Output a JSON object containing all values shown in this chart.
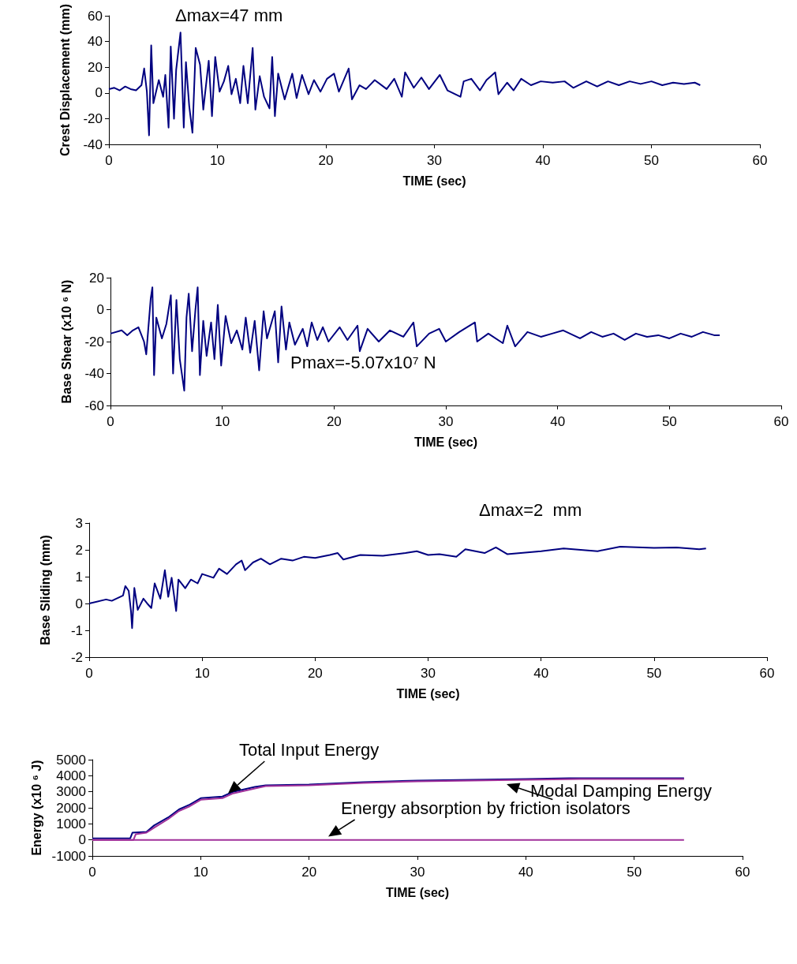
{
  "chart_data": [
    {
      "type": "line",
      "ylabel": "Crest Displacement (mm)",
      "xlabel": "TIME (sec)",
      "annotations": [
        "Δmax=47 mm"
      ],
      "marker": "none",
      "xlim": [
        0,
        60
      ],
      "xticks": [
        0,
        10,
        20,
        30,
        40,
        50,
        60
      ],
      "ylim": [
        -40,
        60
      ],
      "yticks": [
        -40,
        -20,
        0,
        20,
        40,
        60
      ],
      "series": [
        {
          "color": "#000080",
          "x": [
            0,
            0.5,
            1,
            1.5,
            2,
            2.5,
            3,
            3.25,
            3.5,
            3.7,
            3.9,
            4.1,
            4.6,
            5.0,
            5.2,
            5.5,
            5.7,
            6.0,
            6.2,
            6.6,
            6.9,
            7.1,
            7.4,
            7.7,
            8.0,
            8.4,
            8.7,
            9.2,
            9.5,
            9.8,
            10.2,
            10.6,
            11.0,
            11.3,
            11.7,
            12.1,
            12.4,
            12.8,
            13.25,
            13.5,
            13.9,
            14.3,
            14.8,
            15.05,
            15.3,
            15.6,
            16.2,
            16.9,
            17.3,
            17.8,
            18.4,
            18.9,
            19.5,
            20.1,
            20.75,
            21.2,
            22.1,
            22.4,
            23.1,
            23.7,
            24.5,
            25.6,
            26.3,
            27,
            27.3,
            28.1,
            28.8,
            29.5,
            30.5,
            31.2,
            32.4,
            32.7,
            33.4,
            34.2,
            34.8,
            35.6,
            35.9,
            36.7,
            37.3,
            38,
            38.9,
            39.8,
            40.9,
            42,
            42.8,
            44,
            45,
            46,
            47,
            48,
            49,
            50,
            51,
            52,
            53,
            54,
            54.5
          ],
          "values": [
            3,
            4,
            2,
            5,
            3,
            2,
            6,
            19,
            1,
            -33,
            37,
            -8,
            10,
            -3,
            14,
            -27,
            36,
            -20,
            18,
            47,
            -27,
            24,
            -10,
            -31,
            35,
            22,
            -13,
            25,
            -18,
            28,
            1,
            9,
            21,
            -1,
            11,
            -8,
            21,
            -8,
            35,
            -13,
            13,
            -3,
            -12,
            28,
            -18,
            15,
            -5,
            15,
            -4,
            14,
            -1,
            10,
            1,
            11,
            15,
            1,
            19,
            -5,
            6,
            3,
            10,
            3,
            11,
            -3,
            16,
            4,
            12,
            3,
            14,
            2,
            -3,
            9,
            11,
            2,
            10,
            16,
            -1,
            8,
            2,
            11,
            6,
            9,
            8,
            9,
            4,
            9,
            5,
            9,
            6,
            9,
            7,
            9,
            6,
            8,
            7,
            8,
            6
          ]
        }
      ]
    },
    {
      "type": "line",
      "ylabel": "Base Shear (x10 ⁶ N)",
      "xlabel": "TIME (sec)",
      "annotations": [
        "Pmax=-5.07x10⁷ N"
      ],
      "marker": "none",
      "xlim": [
        0,
        60
      ],
      "xticks": [
        0,
        10,
        20,
        30,
        40,
        50,
        60
      ],
      "ylim": [
        -60,
        20
      ],
      "yticks": [
        -60,
        -40,
        -20,
        0,
        20
      ],
      "series": [
        {
          "color": "#000080",
          "x": [
            0,
            1,
            1.5,
            2,
            2.5,
            3.0,
            3.2,
            3.6,
            3.75,
            3.9,
            4.1,
            4.6,
            5.0,
            5.4,
            5.6,
            5.9,
            6.2,
            6.6,
            6.8,
            7.0,
            7.3,
            7.6,
            7.8,
            8.0,
            8.3,
            8.6,
            9.0,
            9.3,
            9.6,
            9.9,
            10.3,
            10.8,
            11.3,
            11.8,
            12.1,
            12.5,
            12.9,
            13.3,
            13.7,
            14.0,
            14.7,
            15.0,
            15.3,
            15.7,
            16.0,
            16.5,
            17.2,
            17.6,
            18.0,
            18.5,
            19.0,
            19.5,
            20.5,
            21.2,
            22.1,
            22.3,
            23.0,
            24.0,
            25,
            26.2,
            27.1,
            27.4,
            28.5,
            29.4,
            30.0,
            31.2,
            32.6,
            32.8,
            33.8,
            35.1,
            35.5,
            36.2,
            37.3,
            38.5,
            39.5,
            40.5,
            42,
            43,
            44,
            45,
            46,
            47,
            48,
            49,
            50,
            51,
            52,
            53,
            54,
            54.5
          ],
          "values": [
            -15,
            -13,
            -16,
            -13,
            -11,
            -20,
            -28,
            7,
            14,
            -41,
            -5,
            -18,
            -9,
            9,
            -40,
            6,
            -31,
            -50.7,
            -5,
            10,
            -26,
            0,
            14,
            -41,
            -7,
            -29,
            -8,
            -31,
            3,
            -35,
            -4,
            -21,
            -13,
            -25,
            -5,
            -27,
            -7,
            -38,
            -1,
            -18,
            -1,
            -33,
            2,
            -25,
            -8,
            -22,
            -12,
            -23,
            -8,
            -19,
            -11,
            -20,
            -11,
            -19,
            -10,
            -26,
            -12,
            -20,
            -13,
            -17,
            -8,
            -23,
            -15,
            -12,
            -20,
            -14,
            -8,
            -20,
            -15,
            -21,
            -10,
            -23,
            -14,
            -17,
            -15,
            -13,
            -18,
            -14,
            -17,
            -15,
            -19,
            -15,
            -17,
            -16,
            -18,
            -15,
            -17,
            -14,
            -16,
            -16
          ]
        }
      ]
    },
    {
      "type": "line",
      "ylabel": "Base Sliding (mm)",
      "xlabel": "TIME (sec)",
      "annotations": [
        "Δmax=2  mm"
      ],
      "marker": "none",
      "xlim": [
        0,
        60
      ],
      "xticks": [
        0,
        10,
        20,
        30,
        40,
        50,
        60
      ],
      "ylim": [
        -2,
        3
      ],
      "yticks": [
        -2,
        -1,
        0,
        1,
        2,
        3
      ],
      "series": [
        {
          "color": "#000080",
          "x": [
            0,
            1.5,
            2,
            3,
            3.2,
            3.5,
            3.7,
            3.8,
            4,
            4.3,
            4.8,
            5.2,
            5.5,
            5.8,
            6.3,
            6.7,
            7,
            7.3,
            7.7,
            7.9,
            8.5,
            9,
            9.6,
            10,
            11,
            11.5,
            12.2,
            13,
            13.5,
            13.8,
            14.5,
            15.2,
            16,
            17,
            18,
            19,
            20,
            21.3,
            22,
            22.5,
            24,
            26,
            28,
            29,
            30,
            31,
            32.5,
            33.3,
            35,
            36,
            37,
            40,
            42,
            45,
            47,
            50,
            52,
            54,
            54.6
          ],
          "values": [
            0,
            0.15,
            0.1,
            0.3,
            0.65,
            0.47,
            -0.28,
            -0.92,
            0.58,
            -0.24,
            0.18,
            -0.03,
            -0.17,
            0.75,
            0.18,
            1.24,
            0.25,
            0.96,
            -0.28,
            0.89,
            0.57,
            0.89,
            0.75,
            1.1,
            0.96,
            1.3,
            1.1,
            1.46,
            1.6,
            1.24,
            1.53,
            1.67,
            1.46,
            1.67,
            1.6,
            1.74,
            1.7,
            1.81,
            1.88,
            1.64,
            1.81,
            1.78,
            1.88,
            1.95,
            1.81,
            1.84,
            1.74,
            2.02,
            1.88,
            2.09,
            1.84,
            1.95,
            2.05,
            1.95,
            2.12,
            2.07,
            2.09,
            2.02,
            2.05
          ]
        }
      ]
    },
    {
      "type": "line",
      "ylabel": "Energy (x10 ⁶ J)",
      "xlabel": "TIME (sec)",
      "marker": "none",
      "xlim": [
        0,
        60
      ],
      "xticks": [
        0,
        10,
        20,
        30,
        40,
        50,
        60
      ],
      "ylim": [
        -1000,
        5000
      ],
      "yticks": [
        -1000,
        0,
        1000,
        2000,
        3000,
        4000,
        5000
      ],
      "annotations": [
        {
          "text": "Total Input Energy",
          "x": 12.5,
          "y": 2900
        },
        {
          "text": "Modal Damping Energy",
          "x": 38.2,
          "y": 3500
        },
        {
          "text": "Energy absorption by friction isolators",
          "x": 21.8,
          "y": 200
        }
      ],
      "series": [
        {
          "color": "#000080",
          "x": [
            0,
            3.5,
            3.7,
            5,
            5.7,
            7,
            8,
            9,
            10,
            12,
            13,
            15,
            16,
            20,
            25,
            30,
            35,
            40,
            44,
            54.6
          ],
          "values": [
            100,
            100,
            450,
            500,
            900,
            1400,
            1900,
            2200,
            2600,
            2700,
            3000,
            3300,
            3400,
            3450,
            3600,
            3700,
            3750,
            3800,
            3850,
            3850
          ]
        },
        {
          "color": "#a0309a",
          "x": [
            0,
            3.8,
            4,
            5,
            5.8,
            7,
            8,
            9,
            10,
            12,
            13,
            15,
            16,
            20,
            25,
            30,
            35,
            40,
            45,
            54.6
          ],
          "values": [
            0,
            0,
            350,
            450,
            800,
            1300,
            1800,
            2100,
            2500,
            2600,
            2900,
            3200,
            3350,
            3400,
            3550,
            3650,
            3700,
            3750,
            3800,
            3800
          ]
        },
        {
          "color": "#a0309a",
          "x": [
            0,
            54.6
          ],
          "values": [
            0,
            0
          ]
        }
      ]
    }
  ]
}
